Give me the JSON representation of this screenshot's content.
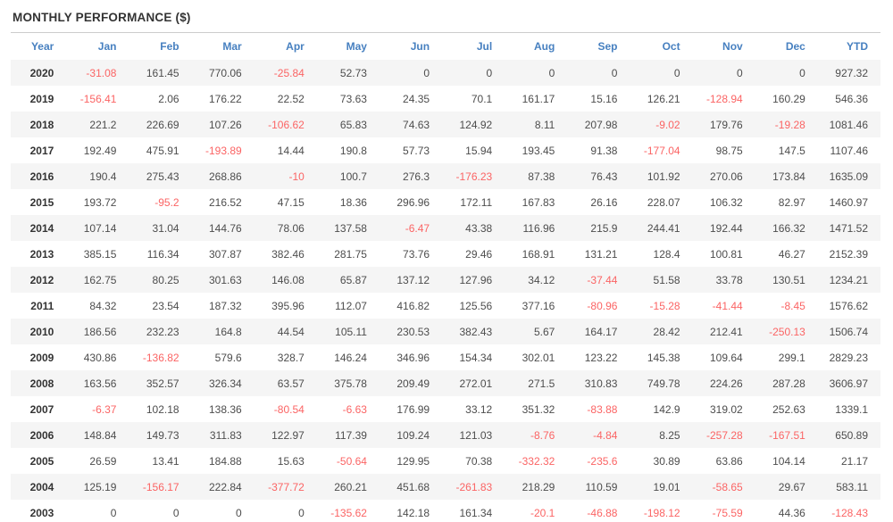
{
  "title": "MONTHLY PERFORMANCE ($)",
  "table": {
    "columns": [
      "Year",
      "Jan",
      "Feb",
      "Mar",
      "Apr",
      "May",
      "Jun",
      "Jul",
      "Aug",
      "Sep",
      "Oct",
      "Nov",
      "Dec",
      "YTD"
    ],
    "rows": [
      {
        "year": "2020",
        "values": [
          "-31.08",
          "161.45",
          "770.06",
          "-25.84",
          "52.73",
          "0",
          "0",
          "0",
          "0",
          "0",
          "0",
          "0",
          "927.32"
        ]
      },
      {
        "year": "2019",
        "values": [
          "-156.41",
          "2.06",
          "176.22",
          "22.52",
          "73.63",
          "24.35",
          "70.1",
          "161.17",
          "15.16",
          "126.21",
          "-128.94",
          "160.29",
          "546.36"
        ]
      },
      {
        "year": "2018",
        "values": [
          "221.2",
          "226.69",
          "107.26",
          "-106.62",
          "65.83",
          "74.63",
          "124.92",
          "8.11",
          "207.98",
          "-9.02",
          "179.76",
          "-19.28",
          "1081.46"
        ]
      },
      {
        "year": "2017",
        "values": [
          "192.49",
          "475.91",
          "-193.89",
          "14.44",
          "190.8",
          "57.73",
          "15.94",
          "193.45",
          "91.38",
          "-177.04",
          "98.75",
          "147.5",
          "1107.46"
        ]
      },
      {
        "year": "2016",
        "values": [
          "190.4",
          "275.43",
          "268.86",
          "-10",
          "100.7",
          "276.3",
          "-176.23",
          "87.38",
          "76.43",
          "101.92",
          "270.06",
          "173.84",
          "1635.09"
        ]
      },
      {
        "year": "2015",
        "values": [
          "193.72",
          "-95.2",
          "216.52",
          "47.15",
          "18.36",
          "296.96",
          "172.11",
          "167.83",
          "26.16",
          "228.07",
          "106.32",
          "82.97",
          "1460.97"
        ]
      },
      {
        "year": "2014",
        "values": [
          "107.14",
          "31.04",
          "144.76",
          "78.06",
          "137.58",
          "-6.47",
          "43.38",
          "116.96",
          "215.9",
          "244.41",
          "192.44",
          "166.32",
          "1471.52"
        ]
      },
      {
        "year": "2013",
        "values": [
          "385.15",
          "116.34",
          "307.87",
          "382.46",
          "281.75",
          "73.76",
          "29.46",
          "168.91",
          "131.21",
          "128.4",
          "100.81",
          "46.27",
          "2152.39"
        ]
      },
      {
        "year": "2012",
        "values": [
          "162.75",
          "80.25",
          "301.63",
          "146.08",
          "65.87",
          "137.12",
          "127.96",
          "34.12",
          "-37.44",
          "51.58",
          "33.78",
          "130.51",
          "1234.21"
        ]
      },
      {
        "year": "2011",
        "values": [
          "84.32",
          "23.54",
          "187.32",
          "395.96",
          "112.07",
          "416.82",
          "125.56",
          "377.16",
          "-80.96",
          "-15.28",
          "-41.44",
          "-8.45",
          "1576.62"
        ]
      },
      {
        "year": "2010",
        "values": [
          "186.56",
          "232.23",
          "164.8",
          "44.54",
          "105.11",
          "230.53",
          "382.43",
          "5.67",
          "164.17",
          "28.42",
          "212.41",
          "-250.13",
          "1506.74"
        ]
      },
      {
        "year": "2009",
        "values": [
          "430.86",
          "-136.82",
          "579.6",
          "328.7",
          "146.24",
          "346.96",
          "154.34",
          "302.01",
          "123.22",
          "145.38",
          "109.64",
          "299.1",
          "2829.23"
        ]
      },
      {
        "year": "2008",
        "values": [
          "163.56",
          "352.57",
          "326.34",
          "63.57",
          "375.78",
          "209.49",
          "272.01",
          "271.5",
          "310.83",
          "749.78",
          "224.26",
          "287.28",
          "3606.97"
        ]
      },
      {
        "year": "2007",
        "values": [
          "-6.37",
          "102.18",
          "138.36",
          "-80.54",
          "-6.63",
          "176.99",
          "33.12",
          "351.32",
          "-83.88",
          "142.9",
          "319.02",
          "252.63",
          "1339.1"
        ]
      },
      {
        "year": "2006",
        "values": [
          "148.84",
          "149.73",
          "311.83",
          "122.97",
          "117.39",
          "109.24",
          "121.03",
          "-8.76",
          "-4.84",
          "8.25",
          "-257.28",
          "-167.51",
          "650.89"
        ]
      },
      {
        "year": "2005",
        "values": [
          "26.59",
          "13.41",
          "184.88",
          "15.63",
          "-50.64",
          "129.95",
          "70.38",
          "-332.32",
          "-235.6",
          "30.89",
          "63.86",
          "104.14",
          "21.17"
        ]
      },
      {
        "year": "2004",
        "values": [
          "125.19",
          "-156.17",
          "222.84",
          "-377.72",
          "260.21",
          "451.68",
          "-261.83",
          "218.29",
          "110.59",
          "19.01",
          "-58.65",
          "29.67",
          "583.11"
        ]
      },
      {
        "year": "2003",
        "values": [
          "0",
          "0",
          "0",
          "0",
          "-135.62",
          "142.18",
          "161.34",
          "-20.1",
          "-46.88",
          "-198.12",
          "-75.59",
          "44.36",
          "-128.43"
        ]
      }
    ]
  },
  "colors": {
    "header_text": "#4780c0",
    "negative_value": "#fb6464",
    "positive_value": "#4d4d4d",
    "year_text": "#333333",
    "row_stripe": "#f5f5f5",
    "divider": "#cccccc"
  }
}
